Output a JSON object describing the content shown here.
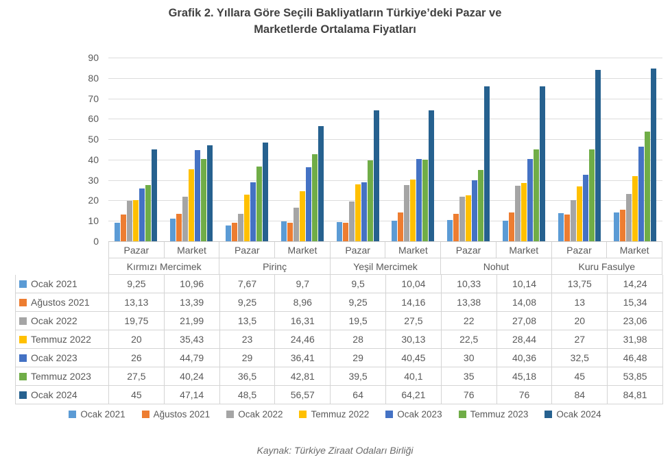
{
  "page": {
    "title_line1": "Grafik 2. Yıllara Göre Seçili Bakliyatların Türkiye’deki Pazar ve",
    "title_line2": "Marketlerde Ortalama Fiyatları",
    "source_note": "Kaynak: Türkiye Ziraat Odaları Birliği"
  },
  "chart_data": {
    "type": "bar",
    "title": "Grafik 2. Yıllara Göre Seçili Bakliyatların Türkiye’deki Pazar ve Marketlerde Ortalama Fiyatları",
    "xlabel": "",
    "ylabel": "",
    "ylim": [
      0,
      90
    ],
    "yticks": [
      0,
      10,
      20,
      30,
      40,
      50,
      60,
      70,
      80,
      90
    ],
    "grid": true,
    "legend_position": "bottom",
    "categories": [
      "Kırmızı Mercimek",
      "Pirinç",
      "Yeşil Mercimek",
      "Nohut",
      "Kuru Fasulye"
    ],
    "subcategories": [
      "Pazar",
      "Market"
    ],
    "series": [
      {
        "name": "Ocak 2021",
        "color": "#5B9BD5",
        "values": [
          9.25,
          10.96,
          7.67,
          9.7,
          9.5,
          10.04,
          10.33,
          10.14,
          13.75,
          14.24
        ],
        "display": [
          "9,25",
          "10,96",
          "7,67",
          "9,7",
          "9,5",
          "10,04",
          "10,33",
          "10,14",
          "13,75",
          "14,24"
        ]
      },
      {
        "name": "Ağustos 2021",
        "color": "#ED7D31",
        "values": [
          13.13,
          13.39,
          9.25,
          8.96,
          9.25,
          14.16,
          13.38,
          14.08,
          13,
          15.34
        ],
        "display": [
          "13,13",
          "13,39",
          "9,25",
          "8,96",
          "9,25",
          "14,16",
          "13,38",
          "14,08",
          "13",
          "15,34"
        ]
      },
      {
        "name": "Ocak 2022",
        "color": "#A5A5A5",
        "values": [
          19.75,
          21.99,
          13.5,
          16.31,
          19.5,
          27.5,
          22,
          27.08,
          20,
          23.06
        ],
        "display": [
          "19,75",
          "21,99",
          "13,5",
          "16,31",
          "19,5",
          "27,5",
          "22",
          "27,08",
          "20",
          "23,06"
        ]
      },
      {
        "name": "Temmuz 2022",
        "color": "#FFC000",
        "values": [
          20,
          35.43,
          23,
          24.46,
          28,
          30.13,
          22.5,
          28.44,
          27,
          31.98
        ],
        "display": [
          "20",
          "35,43",
          "23",
          "24,46",
          "28",
          "30,13",
          "22,5",
          "28,44",
          "27",
          "31,98"
        ]
      },
      {
        "name": "Ocak 2023",
        "color": "#4472C4",
        "values": [
          26,
          44.79,
          29,
          36.41,
          29,
          40.45,
          30,
          40.36,
          32.5,
          46.48
        ],
        "display": [
          "26",
          "44,79",
          "29",
          "36,41",
          "29",
          "40,45",
          "30",
          "40,36",
          "32,5",
          "46,48"
        ]
      },
      {
        "name": "Temmuz 2023",
        "color": "#70AD47",
        "values": [
          27.5,
          40.24,
          36.5,
          42.81,
          39.5,
          40.1,
          35,
          45.18,
          45,
          53.85
        ],
        "display": [
          "27,5",
          "40,24",
          "36,5",
          "42,81",
          "39,5",
          "40,1",
          "35",
          "45,18",
          "45",
          "53,85"
        ]
      },
      {
        "name": "Ocak 2024",
        "color": "#26618F",
        "values": [
          45,
          47.14,
          48.5,
          56.57,
          64,
          64.21,
          76,
          76,
          84,
          84.81
        ],
        "display": [
          "45",
          "47,14",
          "48,5",
          "56,57",
          "64",
          "64,21",
          "76",
          "76",
          "84",
          "84,81"
        ]
      }
    ]
  }
}
